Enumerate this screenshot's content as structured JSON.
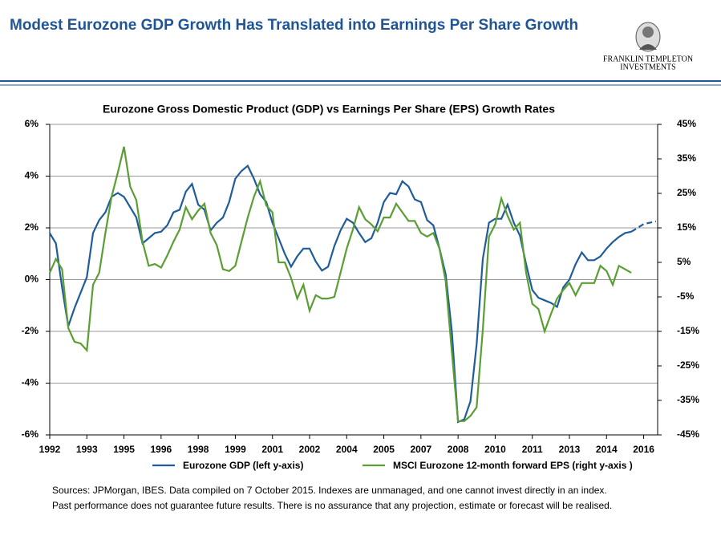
{
  "header": {
    "title": "Modest Eurozone GDP Growth Has Translated into Earnings Per Share Growth",
    "logo_line1": "FRANKLIN TEMPLETON",
    "logo_line2": "INVESTMENTS"
  },
  "chart_data": {
    "type": "line",
    "title": "Eurozone Gross Domestic Product (GDP) vs Earnings Per Share (EPS) Growth Rates",
    "categories": [
      "1992",
      null,
      null,
      null,
      null,
      null,
      "1993",
      null,
      null,
      null,
      null,
      null,
      "1995",
      null,
      null,
      null,
      null,
      null,
      "1996",
      null,
      null,
      null,
      null,
      null,
      "1998",
      null,
      null,
      null,
      null,
      null,
      "1999",
      null,
      null,
      null,
      null,
      null,
      "2001",
      null,
      null,
      null,
      null,
      null,
      "2002",
      null,
      null,
      null,
      null,
      null,
      "2004",
      null,
      null,
      null,
      null,
      null,
      "2005",
      null,
      null,
      null,
      null,
      null,
      "2007",
      null,
      null,
      null,
      null,
      null,
      "2008",
      null,
      null,
      null,
      null,
      null,
      "2010",
      null,
      null,
      null,
      null,
      null,
      "2011",
      null,
      null,
      null,
      null,
      null,
      "2013",
      null,
      null,
      null,
      null,
      null,
      "2014",
      null,
      null,
      null,
      null,
      null,
      "2016",
      null,
      null
    ],
    "series": [
      {
        "name": "Eurozone GDP (left y-axis)",
        "color": "#1f5c99",
        "dash_from": 94,
        "values": [
          1.8,
          1.4,
          -0.3,
          -1.8,
          -1.1,
          -0.5,
          0.1,
          1.8,
          2.3,
          2.6,
          3.2,
          3.35,
          3.2,
          2.8,
          2.4,
          1.4,
          1.6,
          1.8,
          1.85,
          2.1,
          2.6,
          2.7,
          3.4,
          3.7,
          2.9,
          2.7,
          1.9,
          2.2,
          2.4,
          3.0,
          3.9,
          4.2,
          4.4,
          3.9,
          3.3,
          3.0,
          2.2,
          1.6,
          1.0,
          0.5,
          0.9,
          1.2,
          1.2,
          0.7,
          0.35,
          0.5,
          1.3,
          1.9,
          2.35,
          2.2,
          1.8,
          1.45,
          1.6,
          2.2,
          3.0,
          3.35,
          3.3,
          3.8,
          3.6,
          3.1,
          3.0,
          2.3,
          2.1,
          1.2,
          0.2,
          -2.0,
          -5.5,
          -5.4,
          -4.7,
          -2.5,
          0.8,
          2.2,
          2.35,
          2.35,
          2.9,
          2.2,
          1.7,
          0.6,
          -0.4,
          -0.7,
          -0.8,
          -0.9,
          -1.05,
          -0.3,
          0.0,
          0.6,
          1.05,
          0.75,
          0.75,
          0.9,
          1.2,
          1.45,
          1.65,
          1.8,
          1.85,
          2.0,
          2.15,
          2.2,
          2.25
        ]
      },
      {
        "name": "MSCI Eurozone 12-month forward EPS  (right  y-axis )",
        "color": "#5a9e34",
        "axis": "y2",
        "values": [
          2,
          6,
          3,
          -14,
          -18,
          -18.5,
          -20.5,
          -1.5,
          2,
          13.5,
          24,
          31,
          38.5,
          27,
          23,
          11,
          4,
          4.5,
          3.5,
          7,
          11,
          14.5,
          21,
          17.5,
          20,
          22,
          13.5,
          10,
          3,
          2.5,
          4,
          11,
          18,
          24,
          28.5,
          21.5,
          19.5,
          5,
          5,
          0.5,
          -5.5,
          -1.5,
          -9,
          -4.5,
          -5.5,
          -5.5,
          -5,
          2,
          9,
          14.5,
          21,
          17.5,
          16,
          14,
          18,
          18,
          22,
          19.5,
          17,
          17,
          13.5,
          12.5,
          13.5,
          9,
          -0.5,
          -21,
          -41,
          -41,
          -39.5,
          -37,
          -14.5,
          12.5,
          16,
          23.5,
          18.5,
          14.5,
          16.5,
          2,
          -7,
          -8.5,
          -15,
          -10,
          -5.5,
          -3,
          -1,
          -4.5,
          -1,
          -1,
          -1,
          4,
          2.5,
          -1.5,
          4,
          3,
          2,
          null,
          null,
          null,
          null
        ]
      }
    ],
    "ylim": [
      -6,
      6
    ],
    "yticks": [
      {
        "value": 6,
        "label": "6%"
      },
      {
        "value": 4,
        "label": "4%"
      },
      {
        "value": 2,
        "label": "2%"
      },
      {
        "value": 0,
        "label": "0%"
      },
      {
        "value": -2,
        "label": "-2%"
      },
      {
        "value": -4,
        "label": "-4%"
      },
      {
        "value": -6,
        "label": "-6%"
      }
    ],
    "y2lim": [
      -45,
      45
    ],
    "y2ticks": [
      {
        "value": 45,
        "label": "45%"
      },
      {
        "value": 35,
        "label": "35%"
      },
      {
        "value": 25,
        "label": "25%"
      },
      {
        "value": 15,
        "label": "15%"
      },
      {
        "value": 5,
        "label": "5%"
      },
      {
        "value": -5,
        "label": "-5%"
      },
      {
        "value": -15,
        "label": "-15%"
      },
      {
        "value": -25,
        "label": "-25%"
      },
      {
        "value": -35,
        "label": "-35%"
      },
      {
        "value": -45,
        "label": "-45%"
      }
    ],
    "grid": true
  },
  "footer": {
    "line1": "Sources: JPMorgan, IBES.  Data compiled on 7 October 2015. Indexes are unmanaged, and one cannot invest directly in an index.",
    "line2": "Past performance does not guarantee future results.  There is no assurance that any projection, estimate or forecast will be realised."
  }
}
